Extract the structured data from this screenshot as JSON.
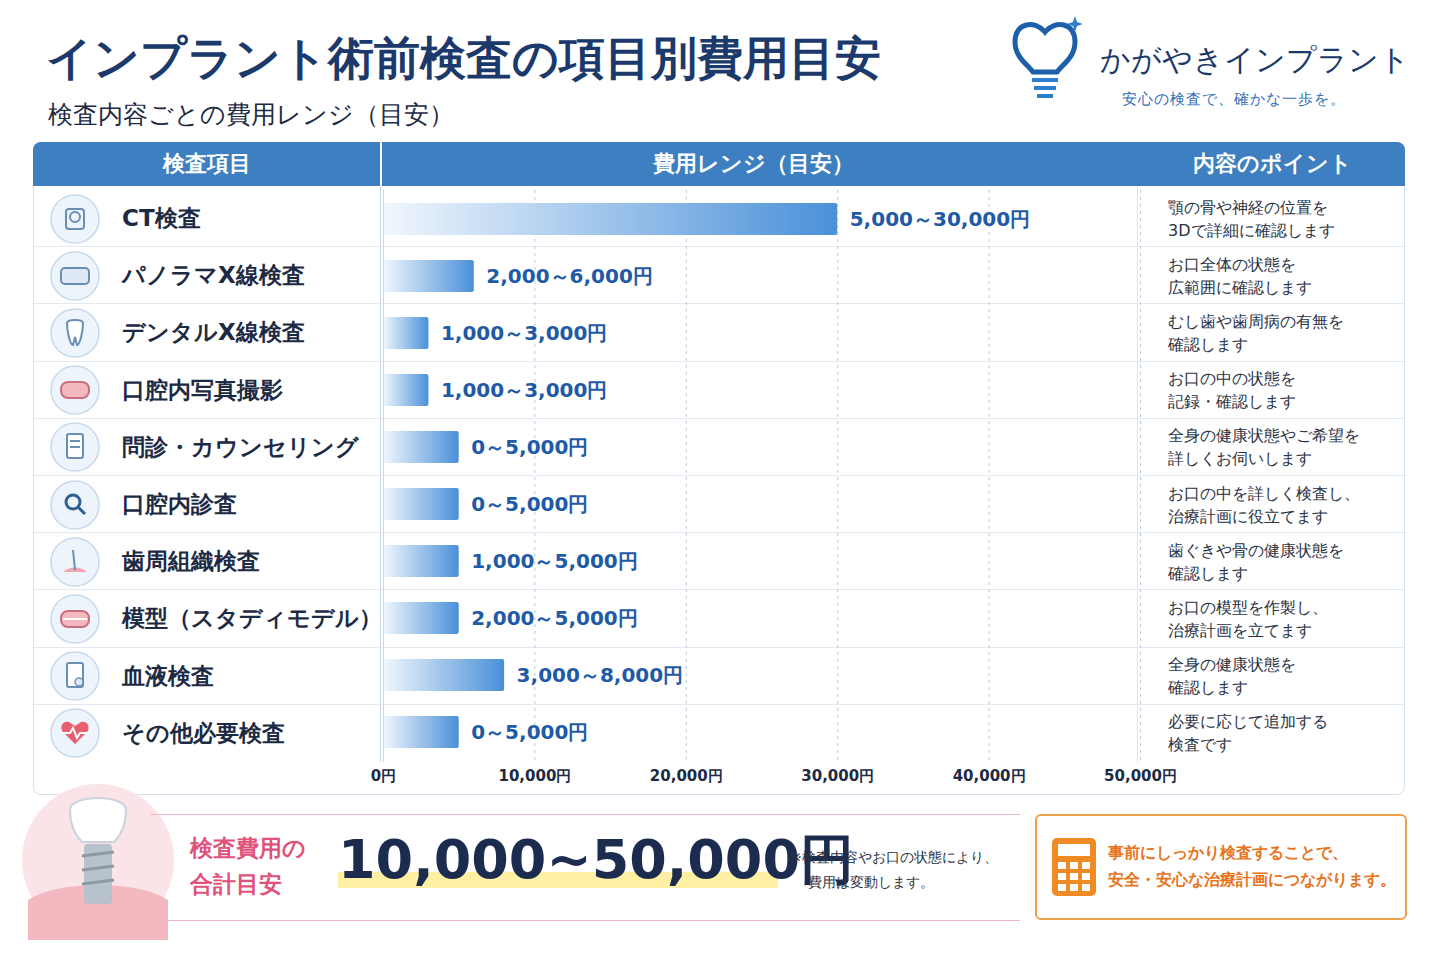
{
  "header": {
    "title": "インプラント術前検査の項目別費用目安",
    "subtitle": "検査内容ごとの費用レンジ（目安）",
    "brand": "かがやきインプラント",
    "tagline": "安心の検査で、確かな一歩を。"
  },
  "table": {
    "columns": [
      "検査項目",
      "費用レンジ（目安）",
      "内容のポイント"
    ],
    "descriptions": [
      [
        "顎の骨や神経の位置を",
        "3Dで詳細に確認します"
      ],
      [
        "お口全体の状態を",
        "広範囲に確認します"
      ],
      [
        "むし歯や歯周病の有無を",
        "確認します"
      ],
      [
        "お口の中の状態を",
        "記録・確認します"
      ],
      [
        "全身の健康状態やご希望を",
        "詳しくお伺いします"
      ],
      [
        "お口の中を詳しく検査し、",
        "治療計画に役立てます"
      ],
      [
        "歯ぐきや骨の健康状態を",
        "確認します"
      ],
      [
        "お口の模型を作製し、",
        "治療計画を立てます"
      ],
      [
        "全身の健康状態を",
        "確認します"
      ],
      [
        "必要に応じて追加する",
        "検査です"
      ]
    ]
  },
  "chart_data": {
    "type": "bar",
    "orientation": "horizontal",
    "categories": [
      "CT検査",
      "パノラマX線検査",
      "デンタルX線検査",
      "口腔内写真撮影",
      "問診・カウンセリング",
      "口腔内診査",
      "歯周組織検査",
      "模型（スタディモデル）",
      "血液検査",
      "その他必要検査"
    ],
    "values": [
      30000,
      6000,
      3000,
      3000,
      5000,
      5000,
      5000,
      5000,
      8000,
      5000
    ],
    "value_labels": [
      "5,000～30,000円",
      "2,000～6,000円",
      "1,000～3,000円",
      "1,000～3,000円",
      "0～5,000円",
      "0～5,000円",
      "1,000～5,000円",
      "2,000～5,000円",
      "3,000～8,000円",
      "0～5,000円"
    ],
    "data_labels": true,
    "color": "#4a90d9",
    "xlim": [
      0,
      50000
    ],
    "xticks": [
      {
        "value": 0,
        "label": "0円"
      },
      {
        "value": 10000,
        "label": "10,000円"
      },
      {
        "value": 20000,
        "label": "20,000円"
      },
      {
        "value": 30000,
        "label": "30,000円"
      },
      {
        "value": 40000,
        "label": "40,000円"
      },
      {
        "value": 50000,
        "label": "50,000円"
      }
    ],
    "grid": true
  },
  "summary": {
    "total_label": [
      "検査費用の",
      "合計目安"
    ],
    "total_value": "10,000~50,000円",
    "note": [
      "※検査内容やお口の状態により、",
      "費用は変動します。"
    ],
    "message": [
      "事前にしっかり検査することで、",
      "安全・安心な治療計画につながります。"
    ]
  }
}
